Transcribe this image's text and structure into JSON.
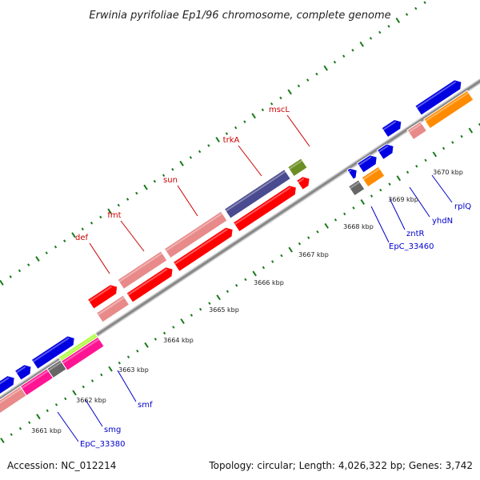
{
  "title": "Erwinia pyrifoliae Ep1/96 chromosome, complete genome",
  "footer": {
    "accession": "Accession: NC_012214",
    "summary": "Topology: circular; Length: 4,026,322 bp; Genes: 3,742"
  },
  "colors": {
    "backbone": "#888888",
    "tick": "#1a7a1a",
    "label_forward": "#cc0000",
    "label_reverse": "#0000cc",
    "leader_forward": "#cc0000",
    "leader_reverse": "#0000cc"
  },
  "scale": {
    "ticks": [
      {
        "label": "3661 kbp"
      },
      {
        "label": "3662 kbp"
      },
      {
        "label": "3663 kbp"
      },
      {
        "label": "3664 kbp"
      },
      {
        "label": "3665 kbp"
      },
      {
        "label": "3666 kbp"
      },
      {
        "label": "3667 kbp"
      },
      {
        "label": "3668 kbp"
      },
      {
        "label": "3669 kbp"
      },
      {
        "label": "3670 kbp"
      }
    ]
  },
  "genes": [
    {
      "name": "",
      "color": "#4a7fb5",
      "strand": "rev"
    },
    {
      "name": "",
      "color": "#e88a8a",
      "strand": "rev"
    },
    {
      "name": "",
      "color": "#0000e0",
      "strand": "fwd2"
    },
    {
      "name": "",
      "color": "#0000e0",
      "strand": "fwd2"
    },
    {
      "name": "",
      "color": "#ff1493",
      "strand": "rev"
    },
    {
      "name": "",
      "color": "#0000e0",
      "strand": "fwd2"
    },
    {
      "name": "",
      "color": "#666666",
      "strand": "rev"
    },
    {
      "name": "",
      "color": "#0000e0",
      "strand": "fwd2"
    },
    {
      "name": "",
      "color": "#aaff33",
      "strand": "rev"
    },
    {
      "name": "",
      "color": "#ff1493",
      "strand": "rev"
    },
    {
      "name": "",
      "color": "#e88a8a",
      "strand": "fwd"
    },
    {
      "name": "",
      "color": "#ff0000",
      "strand": "fwd"
    },
    {
      "name": "",
      "color": "#e88a8a",
      "strand": "fwd"
    },
    {
      "name": "",
      "color": "#ff0000",
      "strand": "fwd"
    },
    {
      "name": "",
      "color": "#e88a8a",
      "strand": "fwd"
    },
    {
      "name": "",
      "color": "#ff0000",
      "strand": "fwd"
    },
    {
      "name": "",
      "color": "#4a4a90",
      "strand": "fwd"
    },
    {
      "name": "",
      "color": "#ff0000",
      "strand": "fwd"
    },
    {
      "name": "",
      "color": "#6b8e23",
      "strand": "fwd"
    },
    {
      "name": "",
      "color": "#ff0000",
      "strand": "fwd"
    },
    {
      "name": "",
      "color": "#0000e0",
      "strand": "fwd"
    },
    {
      "name": "",
      "color": "#666666",
      "strand": "rev"
    },
    {
      "name": "",
      "color": "#0000e0",
      "strand": "fwd"
    },
    {
      "name": "",
      "color": "#ff8c00",
      "strand": "rev"
    },
    {
      "name": "",
      "color": "#0000e0",
      "strand": "fwd"
    },
    {
      "name": "",
      "color": "#0000e0",
      "strand": "fwd"
    },
    {
      "name": "",
      "color": "#e88a8a",
      "strand": "rev"
    },
    {
      "name": "",
      "color": "#0000e0",
      "strand": "fwd"
    },
    {
      "name": "",
      "color": "#ff8c00",
      "strand": "rev"
    }
  ],
  "labels": [
    {
      "text": "EpC_33380",
      "side": "reverse"
    },
    {
      "text": "smg",
      "side": "reverse"
    },
    {
      "text": "smf",
      "side": "reverse"
    },
    {
      "text": "def",
      "side": "forward"
    },
    {
      "text": "fmt",
      "side": "forward"
    },
    {
      "text": "sun",
      "side": "forward"
    },
    {
      "text": "trkA",
      "side": "forward"
    },
    {
      "text": "mscL",
      "side": "forward"
    },
    {
      "text": "EpC_33460",
      "side": "reverse"
    },
    {
      "text": "zntR",
      "side": "reverse"
    },
    {
      "text": "yhdN",
      "side": "reverse"
    },
    {
      "text": "rplQ",
      "side": "reverse"
    }
  ]
}
